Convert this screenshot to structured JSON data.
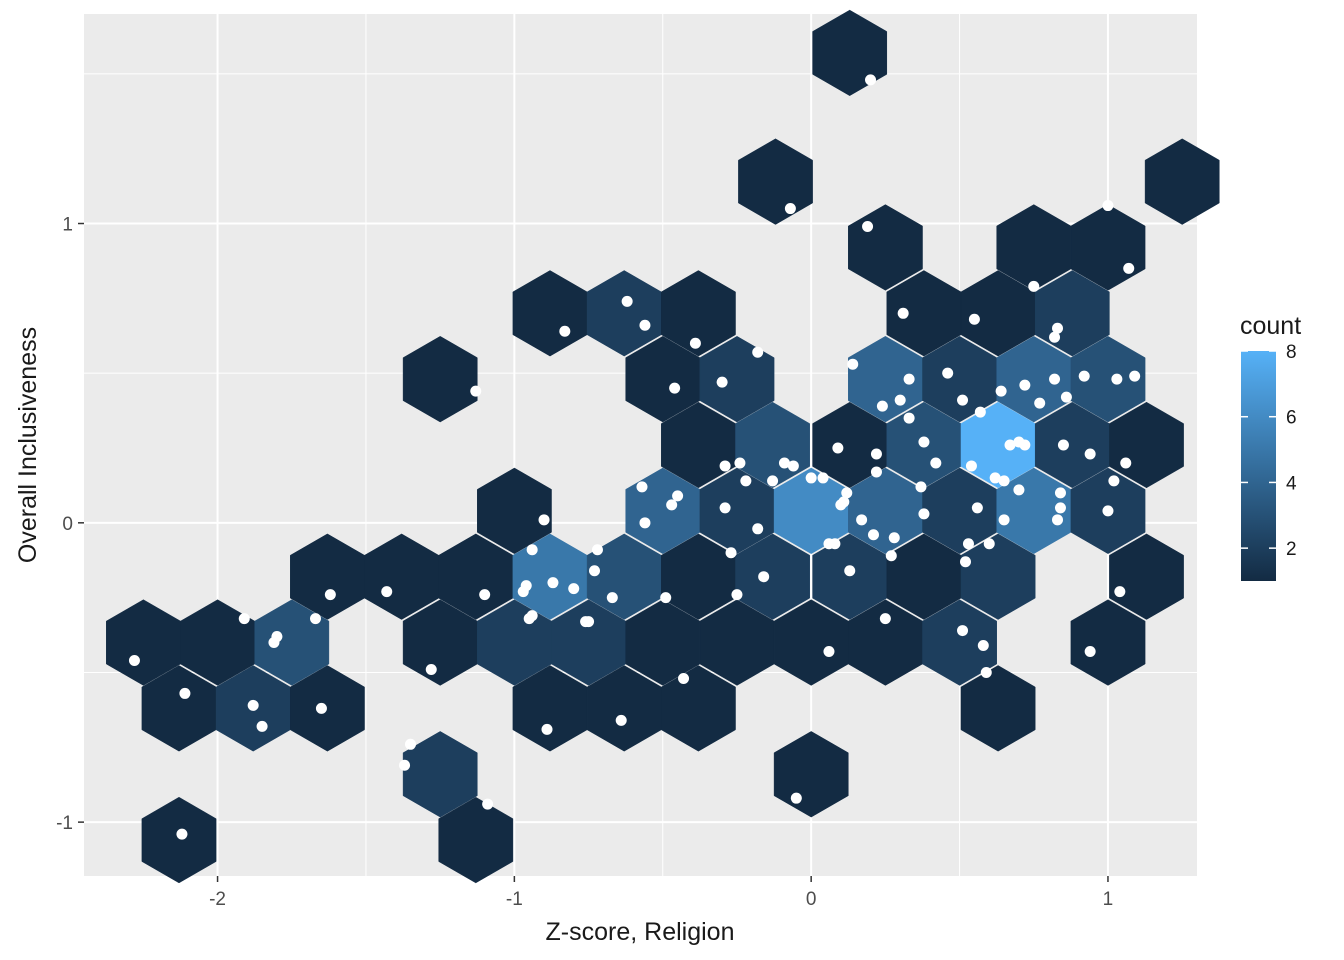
{
  "chart_data": {
    "type": "hexbin",
    "xlabel": "Z-score, Religion",
    "ylabel": "Overall Inclusiveness",
    "xlim": [
      -2.45,
      1.3
    ],
    "ylim": [
      -1.18,
      1.7
    ],
    "x_ticks": [
      {
        "value": -2,
        "label": "-2"
      },
      {
        "value": -1,
        "label": "-1"
      },
      {
        "value": 0,
        "label": "0"
      },
      {
        "value": 1,
        "label": "1"
      }
    ],
    "y_ticks": [
      {
        "value": -1,
        "label": "-1"
      },
      {
        "value": 0,
        "label": "0"
      },
      {
        "value": 1,
        "label": "1"
      }
    ],
    "x_minor": [
      -1.5,
      -0.5,
      0.5
    ],
    "y_minor": [
      -0.5,
      0.5,
      1.5
    ],
    "hexbins": [
      {
        "x": 0.13,
        "y": 1.57,
        "count": 1
      },
      {
        "x": -0.12,
        "y": 1.14,
        "count": 1
      },
      {
        "x": 1.25,
        "y": 1.14,
        "count": 1
      },
      {
        "x": 0.25,
        "y": 0.92,
        "count": 1
      },
      {
        "x": 0.75,
        "y": 0.92,
        "count": 1
      },
      {
        "x": 1.0,
        "y": 0.92,
        "count": 1
      },
      {
        "x": -0.88,
        "y": 0.7,
        "count": 1
      },
      {
        "x": -0.63,
        "y": 0.7,
        "count": 2
      },
      {
        "x": -0.38,
        "y": 0.7,
        "count": 1
      },
      {
        "x": 0.38,
        "y": 0.7,
        "count": 1
      },
      {
        "x": 0.63,
        "y": 0.7,
        "count": 1
      },
      {
        "x": 0.88,
        "y": 0.7,
        "count": 2
      },
      {
        "x": -1.25,
        "y": 0.48,
        "count": 1
      },
      {
        "x": -0.5,
        "y": 0.48,
        "count": 1
      },
      {
        "x": -0.25,
        "y": 0.48,
        "count": 2
      },
      {
        "x": 0.25,
        "y": 0.48,
        "count": 4
      },
      {
        "x": 0.5,
        "y": 0.48,
        "count": 2
      },
      {
        "x": 0.75,
        "y": 0.48,
        "count": 4
      },
      {
        "x": 1.0,
        "y": 0.48,
        "count": 3
      },
      {
        "x": -0.38,
        "y": 0.26,
        "count": 1
      },
      {
        "x": -0.13,
        "y": 0.26,
        "count": 3
      },
      {
        "x": 0.13,
        "y": 0.26,
        "count": 1
      },
      {
        "x": 0.38,
        "y": 0.26,
        "count": 3
      },
      {
        "x": 0.63,
        "y": 0.26,
        "count": 8
      },
      {
        "x": 0.88,
        "y": 0.26,
        "count": 2
      },
      {
        "x": 1.13,
        "y": 0.26,
        "count": 1
      },
      {
        "x": -1.0,
        "y": 0.04,
        "count": 1
      },
      {
        "x": -0.5,
        "y": 0.04,
        "count": 4
      },
      {
        "x": -0.25,
        "y": 0.04,
        "count": 2
      },
      {
        "x": 0.0,
        "y": 0.04,
        "count": 6
      },
      {
        "x": 0.25,
        "y": 0.04,
        "count": 4
      },
      {
        "x": 0.5,
        "y": 0.04,
        "count": 2
      },
      {
        "x": 0.75,
        "y": 0.04,
        "count": 5
      },
      {
        "x": 1.0,
        "y": 0.04,
        "count": 2
      },
      {
        "x": -1.63,
        "y": -0.18,
        "count": 1
      },
      {
        "x": -1.38,
        "y": -0.18,
        "count": 1
      },
      {
        "x": -1.13,
        "y": -0.18,
        "count": 1
      },
      {
        "x": -0.88,
        "y": -0.18,
        "count": 5
      },
      {
        "x": -0.63,
        "y": -0.18,
        "count": 3
      },
      {
        "x": -0.38,
        "y": -0.18,
        "count": 1
      },
      {
        "x": -0.13,
        "y": -0.18,
        "count": 2
      },
      {
        "x": 0.13,
        "y": -0.18,
        "count": 2
      },
      {
        "x": 0.38,
        "y": -0.18,
        "count": 1
      },
      {
        "x": 0.63,
        "y": -0.18,
        "count": 2
      },
      {
        "x": 1.13,
        "y": -0.18,
        "count": 1
      },
      {
        "x": -2.25,
        "y": -0.4,
        "count": 1
      },
      {
        "x": -2.0,
        "y": -0.4,
        "count": 1
      },
      {
        "x": -1.75,
        "y": -0.4,
        "count": 3
      },
      {
        "x": -1.25,
        "y": -0.4,
        "count": 1
      },
      {
        "x": -1.0,
        "y": -0.4,
        "count": 2
      },
      {
        "x": -0.75,
        "y": -0.4,
        "count": 2
      },
      {
        "x": -0.5,
        "y": -0.4,
        "count": 1
      },
      {
        "x": -0.25,
        "y": -0.4,
        "count": 1
      },
      {
        "x": 0.0,
        "y": -0.4,
        "count": 1
      },
      {
        "x": 0.25,
        "y": -0.4,
        "count": 1
      },
      {
        "x": 0.5,
        "y": -0.4,
        "count": 2
      },
      {
        "x": 1.0,
        "y": -0.4,
        "count": 1
      },
      {
        "x": -2.13,
        "y": -0.62,
        "count": 1
      },
      {
        "x": -1.88,
        "y": -0.62,
        "count": 2
      },
      {
        "x": -1.63,
        "y": -0.62,
        "count": 1
      },
      {
        "x": -0.88,
        "y": -0.62,
        "count": 1
      },
      {
        "x": -0.63,
        "y": -0.62,
        "count": 1
      },
      {
        "x": -0.38,
        "y": -0.62,
        "count": 1
      },
      {
        "x": 0.63,
        "y": -0.62,
        "count": 1
      },
      {
        "x": -1.25,
        "y": -0.84,
        "count": 2
      },
      {
        "x": 0.0,
        "y": -0.84,
        "count": 1
      },
      {
        "x": -2.13,
        "y": -1.06,
        "count": 1
      },
      {
        "x": -1.13,
        "y": -1.06,
        "count": 1
      }
    ],
    "points": [
      [
        0.2,
        1.48
      ],
      [
        -0.07,
        1.05
      ],
      [
        0.19,
        0.99
      ],
      [
        1.0,
        1.06
      ],
      [
        1.07,
        0.85
      ],
      [
        -0.62,
        0.74
      ],
      [
        -0.56,
        0.66
      ],
      [
        -0.83,
        0.64
      ],
      [
        -0.39,
        0.6
      ],
      [
        -0.18,
        0.57
      ],
      [
        0.31,
        0.7
      ],
      [
        0.55,
        0.68
      ],
      [
        0.75,
        0.79
      ],
      [
        0.83,
        0.65
      ],
      [
        0.82,
        0.62
      ],
      [
        -1.13,
        0.44
      ],
      [
        -0.46,
        0.45
      ],
      [
        -0.3,
        0.47
      ],
      [
        0.14,
        0.53
      ],
      [
        0.33,
        0.48
      ],
      [
        0.46,
        0.5
      ],
      [
        0.51,
        0.41
      ],
      [
        0.24,
        0.39
      ],
      [
        0.3,
        0.41
      ],
      [
        0.33,
        0.35
      ],
      [
        0.57,
        0.37
      ],
      [
        0.64,
        0.44
      ],
      [
        0.72,
        0.46
      ],
      [
        0.77,
        0.4
      ],
      [
        0.82,
        0.48
      ],
      [
        0.86,
        0.42
      ],
      [
        0.92,
        0.49
      ],
      [
        1.03,
        0.48
      ],
      [
        1.09,
        0.49
      ],
      [
        0.38,
        0.27
      ],
      [
        0.42,
        0.2
      ],
      [
        0.09,
        0.25
      ],
      [
        0.22,
        0.23
      ],
      [
        -0.29,
        0.19
      ],
      [
        -0.24,
        0.2
      ],
      [
        -0.09,
        0.2
      ],
      [
        -0.06,
        0.19
      ],
      [
        -0.22,
        0.14
      ],
      [
        -0.13,
        0.14
      ],
      [
        0.0,
        0.15
      ],
      [
        0.04,
        0.15
      ],
      [
        0.22,
        0.17
      ],
      [
        0.54,
        0.19
      ],
      [
        0.67,
        0.26
      ],
      [
        0.7,
        0.27
      ],
      [
        0.72,
        0.26
      ],
      [
        0.85,
        0.26
      ],
      [
        0.94,
        0.23
      ],
      [
        1.06,
        0.2
      ],
      [
        0.62,
        0.15
      ],
      [
        0.65,
        0.14
      ],
      [
        0.7,
        0.11
      ],
      [
        1.02,
        0.14
      ],
      [
        -0.57,
        0.12
      ],
      [
        -0.45,
        0.09
      ],
      [
        -0.47,
        0.06
      ],
      [
        -0.29,
        0.05
      ],
      [
        0.12,
        0.1
      ],
      [
        0.11,
        0.07
      ],
      [
        0.1,
        0.06
      ],
      [
        0.37,
        0.12
      ],
      [
        0.38,
        0.03
      ],
      [
        0.56,
        0.05
      ],
      [
        0.84,
        0.1
      ],
      [
        0.84,
        0.05
      ],
      [
        0.83,
        0.01
      ],
      [
        1.0,
        0.04
      ],
      [
        -0.9,
        0.01
      ],
      [
        -0.56,
        0.0
      ],
      [
        0.17,
        0.01
      ],
      [
        0.65,
        0.01
      ],
      [
        -0.18,
        -0.02
      ],
      [
        -0.27,
        -0.1
      ],
      [
        0.21,
        -0.04
      ],
      [
        0.28,
        -0.05
      ],
      [
        0.06,
        -0.07
      ],
      [
        0.08,
        -0.07
      ],
      [
        0.53,
        -0.07
      ],
      [
        0.6,
        -0.07
      ],
      [
        -0.94,
        -0.09
      ],
      [
        -0.72,
        -0.09
      ],
      [
        -0.73,
        -0.16
      ],
      [
        -0.16,
        -0.18
      ],
      [
        0.13,
        -0.16
      ],
      [
        0.27,
        -0.11
      ],
      [
        0.52,
        -0.13
      ],
      [
        -0.96,
        -0.21
      ],
      [
        -0.97,
        -0.23
      ],
      [
        -0.87,
        -0.2
      ],
      [
        -0.8,
        -0.22
      ],
      [
        -1.43,
        -0.23
      ],
      [
        -1.1,
        -0.24
      ],
      [
        -1.62,
        -0.24
      ],
      [
        -0.49,
        -0.25
      ],
      [
        -0.25,
        -0.24
      ],
      [
        -0.67,
        -0.25
      ],
      [
        -0.94,
        -0.31
      ],
      [
        -0.95,
        -0.32
      ],
      [
        -0.75,
        -0.33
      ],
      [
        -0.76,
        -0.33
      ],
      [
        -1.67,
        -0.32
      ],
      [
        -1.91,
        -0.32
      ],
      [
        -1.8,
        -0.38
      ],
      [
        -1.81,
        -0.4
      ],
      [
        0.25,
        -0.32
      ],
      [
        0.51,
        -0.36
      ],
      [
        0.58,
        -0.41
      ],
      [
        0.59,
        -0.5
      ],
      [
        1.04,
        -0.23
      ],
      [
        0.94,
        -0.43
      ],
      [
        0.06,
        -0.43
      ],
      [
        -2.28,
        -0.46
      ],
      [
        -1.28,
        -0.49
      ],
      [
        -0.43,
        -0.52
      ],
      [
        -2.11,
        -0.57
      ],
      [
        -1.88,
        -0.61
      ],
      [
        -1.85,
        -0.68
      ],
      [
        -1.65,
        -0.62
      ],
      [
        -0.64,
        -0.66
      ],
      [
        -0.89,
        -0.69
      ],
      [
        -1.35,
        -0.74
      ],
      [
        -1.37,
        -0.81
      ],
      [
        -1.09,
        -0.94
      ],
      [
        -2.12,
        -1.04
      ],
      [
        -0.05,
        -0.92
      ]
    ],
    "legend": {
      "title": "count",
      "ticks": [
        {
          "value": 2,
          "label": "2"
        },
        {
          "value": 4,
          "label": "4"
        },
        {
          "value": 6,
          "label": "6"
        },
        {
          "value": 8,
          "label": "8"
        }
      ],
      "min": 1,
      "max": 8,
      "low_color": "#132B43",
      "high_color": "#56B1F7"
    },
    "colors": {
      "panel": "#EBEBEB",
      "grid": "#FFFFFF",
      "point": "#FFFFFF"
    }
  }
}
